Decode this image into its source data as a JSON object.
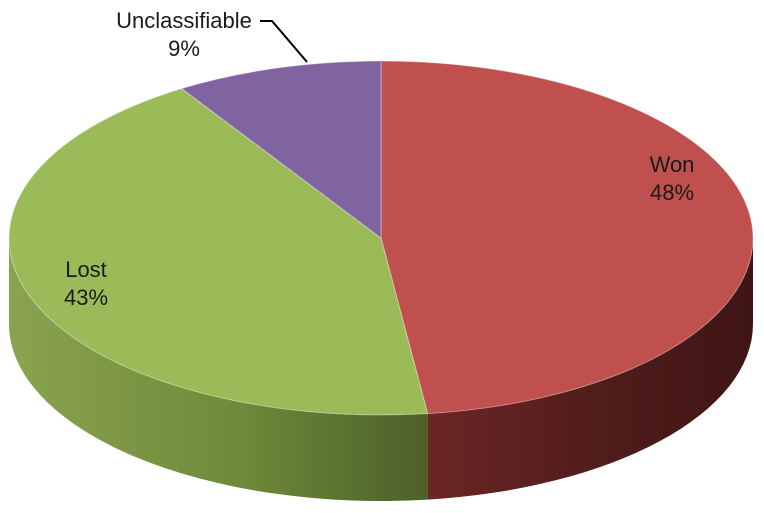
{
  "chart_data": {
    "type": "pie",
    "style": "3d",
    "title": "",
    "slices": [
      {
        "label": "Won",
        "value": 48,
        "display": "48%",
        "color": "#c0504d"
      },
      {
        "label": "Lost",
        "value": 43,
        "display": "43%",
        "color": "#9bbb59"
      },
      {
        "label": "Unclassifiable",
        "value": 9,
        "display": "9%",
        "color": "#8064a2"
      }
    ],
    "legend": "none",
    "data_labels": "category and percentage"
  }
}
